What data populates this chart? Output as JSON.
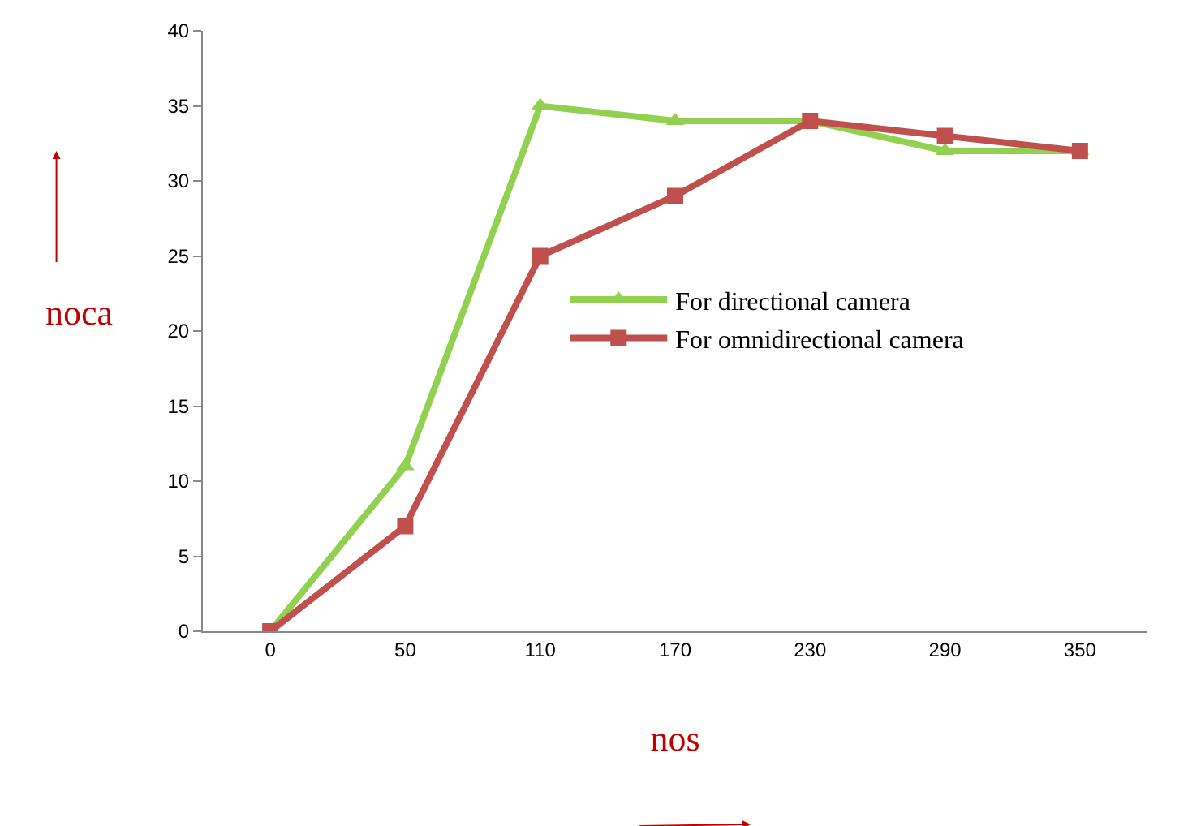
{
  "chart_data": {
    "type": "line",
    "xlabel": "nos",
    "ylabel": "noca",
    "categories": [
      "0",
      "50",
      "110",
      "170",
      "230",
      "290",
      "350"
    ],
    "series": [
      {
        "name": "For directional camera",
        "color": "#92d050",
        "marker": "triangle",
        "values": [
          0,
          11,
          35,
          34,
          34,
          32,
          32
        ]
      },
      {
        "name": "For omnidirectional camera",
        "color": "#c0504d",
        "marker": "square",
        "values": [
          0,
          7,
          25,
          29,
          34,
          33,
          32
        ]
      }
    ],
    "ylim": [
      0,
      40
    ],
    "yticks": [
      0,
      5,
      10,
      15,
      20,
      25,
      30,
      35,
      40
    ],
    "legend": "right",
    "line_style": "solid"
  }
}
